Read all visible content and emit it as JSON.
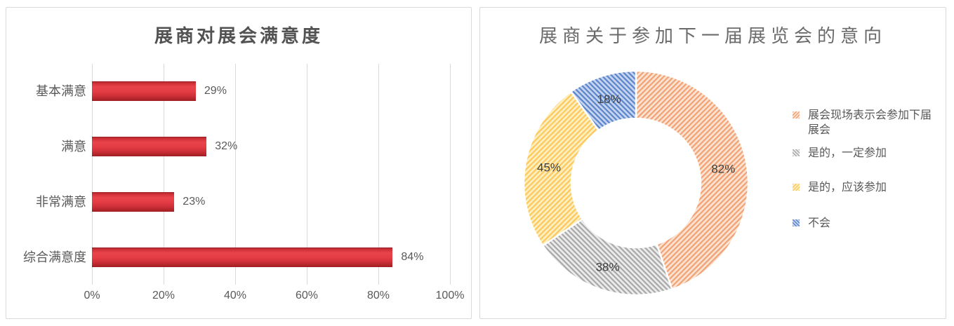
{
  "chart_data": [
    {
      "type": "bar",
      "orientation": "horizontal",
      "title": "展商对展会满意度",
      "categories": [
        "基本满意",
        "满意",
        "非常满意",
        "综合满意度"
      ],
      "values": [
        29,
        32,
        23,
        84
      ],
      "value_labels": [
        "29%",
        "32%",
        "23%",
        "84%"
      ],
      "x_ticks": [
        "0%",
        "20%",
        "40%",
        "60%",
        "80%",
        "100%"
      ],
      "xlim": [
        0,
        100
      ],
      "grid": true,
      "bar_color": "#e03a41",
      "gridline_color": "#d9d9d9",
      "text_color": "#595959"
    },
    {
      "type": "pie",
      "subtype": "donut",
      "title": "展商关于参加下一届展览会的意向",
      "legend_position": "right",
      "note": "slice arc sizes are proportional to value/total, total=183",
      "slices": [
        {
          "name": "展会现场表示会参加下届展会",
          "value": 82,
          "label": "82%",
          "stripe": "#f1a173",
          "bg": "#fbe3d2",
          "hatch": "forward"
        },
        {
          "name": "是的，一定参加",
          "value": 38,
          "label": "38%",
          "stripe": "#a8a8a8",
          "bg": "#ececec",
          "hatch": "back"
        },
        {
          "name": "是的，应该参加",
          "value": 45,
          "label": "45%",
          "stripe": "#fdc75c",
          "bg": "#fdf0c0",
          "hatch": "forward"
        },
        {
          "name": "不会",
          "value": 18,
          "label": "18%",
          "stripe": "#5b84cb",
          "bg": "#c6d5ef",
          "hatch": "back"
        }
      ],
      "label_color": "#3f3f3f"
    }
  ]
}
